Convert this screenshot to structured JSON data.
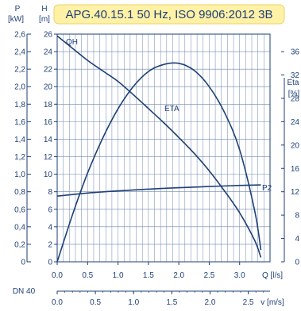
{
  "colors": {
    "ink": "#1e3f76",
    "grid": "#6f86ad",
    "title_bg": "#fff1a6",
    "background": "#ffffff"
  },
  "chart_data": {
    "type": "line",
    "title": "APG.40.15.1 50 Hz, ISO 9906:2012 3B",
    "grid": true,
    "x_axis": {
      "unit_label": "Q [l/s]",
      "range": [
        0,
        3.5
      ],
      "ticks": [
        0.0,
        0.5,
        1.0,
        1.5,
        2.0,
        2.5,
        3.0
      ],
      "tick_labels": [
        "0.0",
        "0.5",
        "1.0",
        "1.5",
        "2.0",
        "2.5",
        "3.0"
      ]
    },
    "secondary_x_axis": {
      "name": "DN 40",
      "unit_label": "v [m/s]",
      "ticks": [
        0.0,
        0.5,
        1.0,
        1.5,
        2.0,
        2.5
      ],
      "tick_labels": [
        "0.0",
        "0.5",
        "1.0",
        "1.5",
        "2.0",
        "2.5"
      ],
      "q_per_v": 1.2566
    },
    "left_axis_power": {
      "symbol": "P",
      "unit": "[kW]",
      "range": [
        0,
        2.6
      ],
      "ticks": [
        0,
        0.2,
        0.4,
        0.6,
        0.8,
        1.0,
        1.2,
        1.4,
        1.6,
        1.8,
        2.0,
        2.2,
        2.4,
        2.6
      ],
      "tick_labels": [
        "0",
        "0,2",
        "0,4",
        "0,6",
        "0,8",
        "1,0",
        "1,2",
        "1,4",
        "1,6",
        "1,8",
        "2,0",
        "2,2",
        "2,4",
        "2,6"
      ]
    },
    "left_axis_head": {
      "symbol": "H",
      "unit": "[m]",
      "range": [
        0,
        26
      ],
      "ticks": [
        0,
        2,
        4,
        6,
        8,
        10,
        12,
        14,
        16,
        18,
        20,
        22,
        24,
        26
      ],
      "tick_labels": [
        "0",
        "2",
        "4",
        "6",
        "8",
        "10",
        "12",
        "14",
        "16",
        "18",
        "20",
        "22",
        "24",
        "26"
      ]
    },
    "right_axis_eta": {
      "symbol": "Eta",
      "unit": "[%]",
      "range": [
        0,
        36
      ],
      "ticks": [
        0,
        4,
        8,
        12,
        16,
        20,
        24,
        28,
        32,
        36
      ],
      "tick_labels": [
        "0",
        "4",
        "8",
        "12",
        "16",
        "20",
        "24",
        "28",
        "32",
        "36"
      ]
    },
    "series": [
      {
        "name": "QH",
        "axis": "head",
        "x": [
          0,
          0.25,
          0.5,
          0.75,
          1.0,
          1.25,
          1.5,
          1.75,
          2.0,
          2.25,
          2.5,
          2.75,
          3.0,
          3.25,
          3.35
        ],
        "y": [
          25.8,
          24.4,
          23.0,
          21.8,
          20.6,
          19.1,
          17.5,
          15.9,
          14.2,
          12.4,
          10.4,
          8.1,
          5.6,
          2.4,
          0.5
        ]
      },
      {
        "name": "ETA",
        "axis": "eta",
        "x": [
          0,
          0.25,
          0.5,
          0.75,
          1.0,
          1.25,
          1.5,
          1.75,
          2.0,
          2.25,
          2.5,
          2.75,
          3.0,
          3.25,
          3.35
        ],
        "y": [
          0,
          8.0,
          15.2,
          21.2,
          26.2,
          30.0,
          32.6,
          33.8,
          34.0,
          32.8,
          30.0,
          25.6,
          19.2,
          8.6,
          2.0
        ]
      },
      {
        "name": "P2",
        "axis": "power",
        "x": [
          0,
          0.5,
          1.0,
          1.5,
          2.0,
          2.5,
          3.0,
          3.35
        ],
        "y": [
          0.75,
          0.785,
          0.81,
          0.83,
          0.846,
          0.86,
          0.872,
          0.878
        ]
      }
    ]
  }
}
